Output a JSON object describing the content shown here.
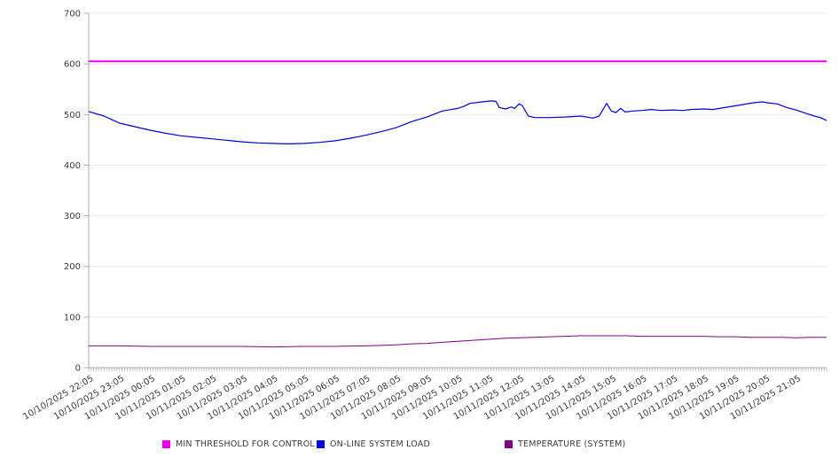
{
  "chart_data": {
    "type": "line",
    "title": "",
    "xlabel": "",
    "ylabel": "",
    "ylim": [
      0,
      700
    ],
    "y_ticks": [
      0,
      100,
      200,
      300,
      400,
      500,
      600,
      700
    ],
    "grid": "horizontal",
    "legend_position": "bottom",
    "x_unit": "hours since first sample (samples every 5 minutes)",
    "x_range_hours": [
      0,
      24
    ],
    "minor_x_ticks": 288,
    "categories": [
      "10/10/2025 22:05",
      "10/10/2025 23:05",
      "10/11/2025 00:05",
      "10/11/2025 01:05",
      "10/11/2025 02:05",
      "10/11/2025 03:05",
      "10/11/2025 04:05",
      "10/11/2025 05:05",
      "10/11/2025 06:05",
      "10/11/2025 07:05",
      "10/11/2025 08:05",
      "10/11/2025 09:05",
      "10/11/2025 10:05",
      "10/11/2025 11:05",
      "10/11/2025 12:05",
      "10/11/2025 13:05",
      "10/11/2025 14:05",
      "10/11/2025 15:05",
      "10/11/2025 16:05",
      "10/11/2025 17:05",
      "10/11/2025 18:05",
      "10/11/2025 19:05",
      "10/11/2025 20:05",
      "10/11/2025 21:05"
    ],
    "series": [
      {
        "name": "MIN THRESHOLD FOR CONTROL",
        "color": "#ee00ee",
        "stroke_width": 2,
        "kind": "threshold",
        "value": 605,
        "points": [
          [
            0,
            605
          ],
          [
            24,
            605
          ]
        ]
      },
      {
        "name": "ON-LINE SYSTEM LOAD",
        "color": "#0000dd",
        "stroke_width": 1.2,
        "kind": "line",
        "points": [
          [
            0,
            506
          ],
          [
            0.5,
            497
          ],
          [
            1,
            483
          ],
          [
            1.5,
            476
          ],
          [
            2,
            469
          ],
          [
            2.5,
            463
          ],
          [
            3,
            458
          ],
          [
            3.5,
            455
          ],
          [
            4,
            452
          ],
          [
            4.5,
            449
          ],
          [
            5,
            446
          ],
          [
            5.5,
            444
          ],
          [
            6,
            443
          ],
          [
            6.5,
            442
          ],
          [
            7,
            443
          ],
          [
            7.5,
            445
          ],
          [
            8,
            448
          ],
          [
            8.5,
            453
          ],
          [
            9,
            459
          ],
          [
            9.5,
            466
          ],
          [
            10,
            474
          ],
          [
            10.5,
            486
          ],
          [
            11,
            495
          ],
          [
            11.5,
            507
          ],
          [
            12,
            512
          ],
          [
            12.2,
            516
          ],
          [
            12.4,
            522
          ],
          [
            12.8,
            525
          ],
          [
            13.1,
            527
          ],
          [
            13.25,
            526
          ],
          [
            13.35,
            514
          ],
          [
            13.55,
            511
          ],
          [
            13.75,
            515
          ],
          [
            13.85,
            512
          ],
          [
            14.0,
            521
          ],
          [
            14.1,
            518
          ],
          [
            14.3,
            497
          ],
          [
            14.5,
            494
          ],
          [
            15,
            494
          ],
          [
            15.5,
            495
          ],
          [
            16,
            497
          ],
          [
            16.4,
            493
          ],
          [
            16.6,
            497
          ],
          [
            16.85,
            522
          ],
          [
            17,
            507
          ],
          [
            17.15,
            504
          ],
          [
            17.3,
            512
          ],
          [
            17.45,
            505
          ],
          [
            17.7,
            507
          ],
          [
            18,
            508
          ],
          [
            18.3,
            510
          ],
          [
            18.6,
            508
          ],
          [
            19,
            509
          ],
          [
            19.3,
            508
          ],
          [
            19.6,
            510
          ],
          [
            20,
            511
          ],
          [
            20.3,
            510
          ],
          [
            20.6,
            513
          ],
          [
            21,
            517
          ],
          [
            21.3,
            520
          ],
          [
            21.6,
            523
          ],
          [
            21.9,
            525
          ],
          [
            22.1,
            523
          ],
          [
            22.4,
            521
          ],
          [
            22.7,
            514
          ],
          [
            23,
            509
          ],
          [
            23.3,
            503
          ],
          [
            23.6,
            497
          ],
          [
            23.8,
            494
          ],
          [
            24,
            488
          ]
        ]
      },
      {
        "name": "TEMPERATURE (SYSTEM)",
        "color": "#800080",
        "stroke_width": 1,
        "kind": "line",
        "points": [
          [
            0,
            43
          ],
          [
            1,
            43
          ],
          [
            2,
            42
          ],
          [
            3,
            42
          ],
          [
            4,
            42
          ],
          [
            5,
            42
          ],
          [
            6,
            41
          ],
          [
            7,
            42
          ],
          [
            8,
            42
          ],
          [
            9,
            43
          ],
          [
            9.5,
            44
          ],
          [
            10,
            45
          ],
          [
            10.5,
            47
          ],
          [
            11,
            48
          ],
          [
            11.5,
            50
          ],
          [
            12,
            52
          ],
          [
            12.5,
            54
          ],
          [
            13,
            56
          ],
          [
            13.5,
            58
          ],
          [
            14,
            59
          ],
          [
            14.5,
            60
          ],
          [
            15,
            61
          ],
          [
            15.5,
            62
          ],
          [
            16,
            63
          ],
          [
            16.5,
            63
          ],
          [
            17,
            63
          ],
          [
            17.5,
            63
          ],
          [
            18,
            62
          ],
          [
            18.5,
            62
          ],
          [
            19,
            62
          ],
          [
            19.5,
            62
          ],
          [
            20,
            62
          ],
          [
            20.5,
            61
          ],
          [
            21,
            61
          ],
          [
            21.5,
            60
          ],
          [
            22,
            60
          ],
          [
            22.5,
            60
          ],
          [
            23,
            59
          ],
          [
            23.5,
            60
          ],
          [
            24,
            60
          ]
        ]
      }
    ],
    "style": {
      "grid_color": "#e9e9e9",
      "axis_color": "#ababab",
      "tick_color": "#999999",
      "label_color": "#3c3c3c"
    }
  }
}
